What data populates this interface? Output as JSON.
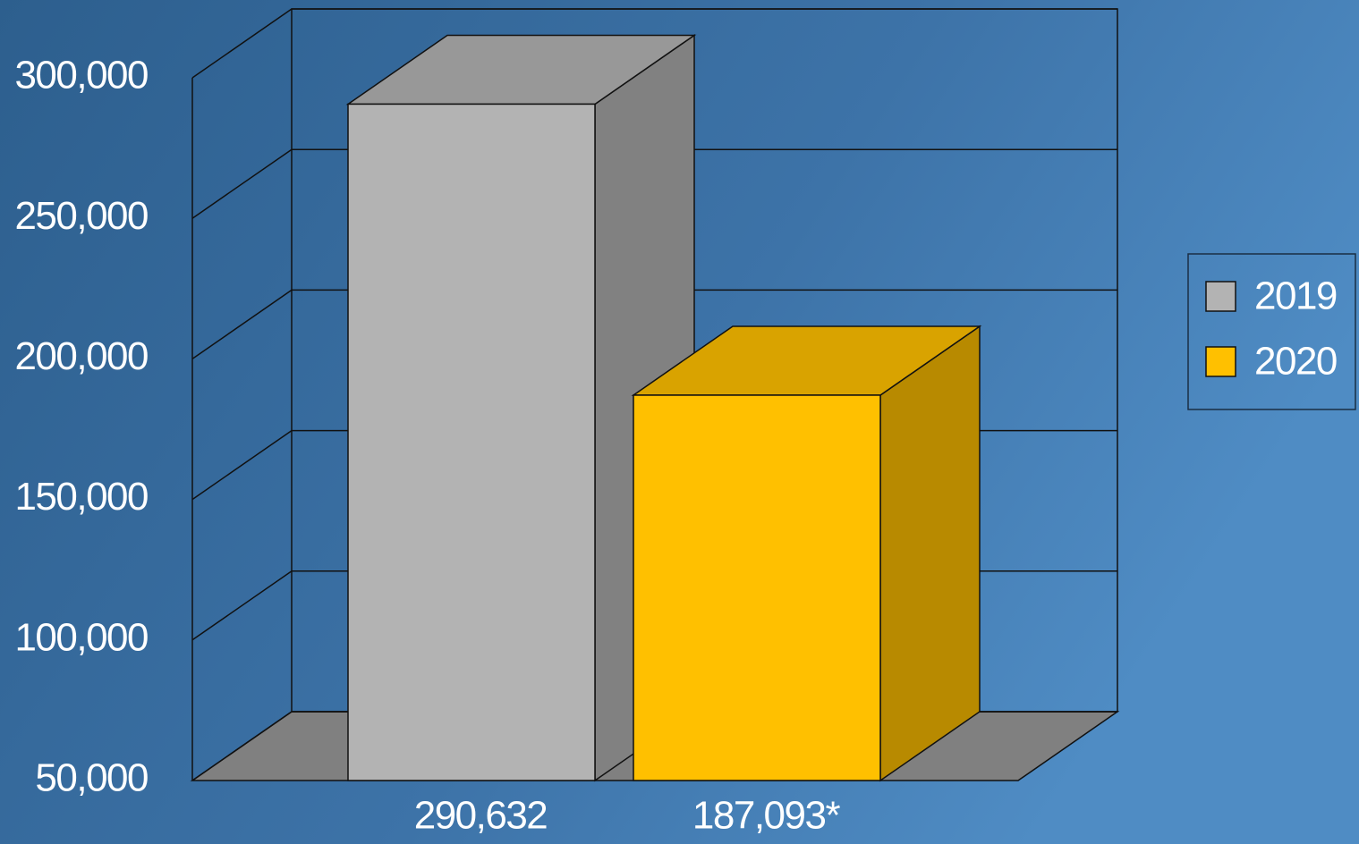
{
  "chart_data": {
    "type": "bar3d",
    "categories": [
      null
    ],
    "series": [
      {
        "name": "2019",
        "color": "#b3b3b3",
        "values": [
          290632
        ],
        "value_labels": [
          "290,632"
        ]
      },
      {
        "name": "2020",
        "color": "#ffc000",
        "values": [
          187093
        ],
        "value_labels": [
          "187,093*"
        ]
      }
    ],
    "ylim": [
      50000,
      300000
    ],
    "yticks": [
      {
        "value": 50000,
        "label": "50,000"
      },
      {
        "value": 100000,
        "label": "100,000"
      },
      {
        "value": 150000,
        "label": "150,000"
      },
      {
        "value": 200000,
        "label": "200,000"
      },
      {
        "value": 250000,
        "label": "250,000"
      },
      {
        "value": 300000,
        "label": "300,000"
      }
    ],
    "grid": true,
    "legend": "right"
  }
}
